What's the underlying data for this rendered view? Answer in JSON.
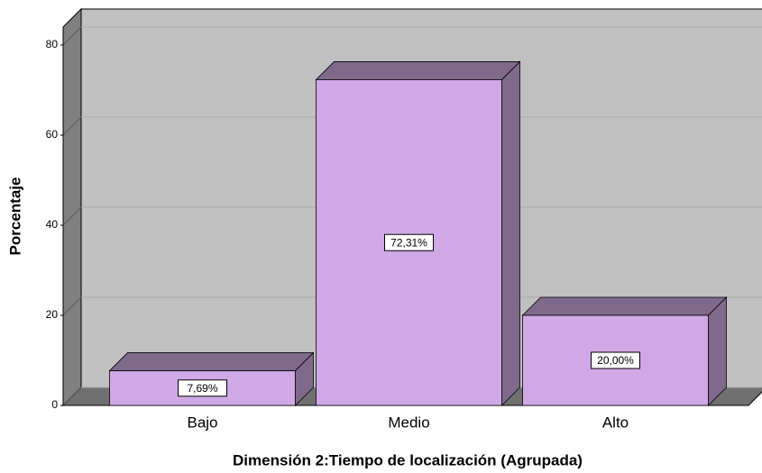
{
  "chart_data": {
    "type": "bar3d",
    "x_label": "Dimensión 2:Tiempo de localización (Agrupada)",
    "y_label": "Porcentaje",
    "categories": [
      "Bajo",
      "Medio",
      "Alto"
    ],
    "values": [
      7.69,
      72.31,
      20.0
    ],
    "value_labels": [
      "7,69%",
      "72,31%",
      "20,00%"
    ],
    "color": "#d0a8e6",
    "ylim": [
      0,
      84
    ],
    "yticks": [
      0,
      20,
      40,
      60,
      80
    ],
    "grid": true
  }
}
